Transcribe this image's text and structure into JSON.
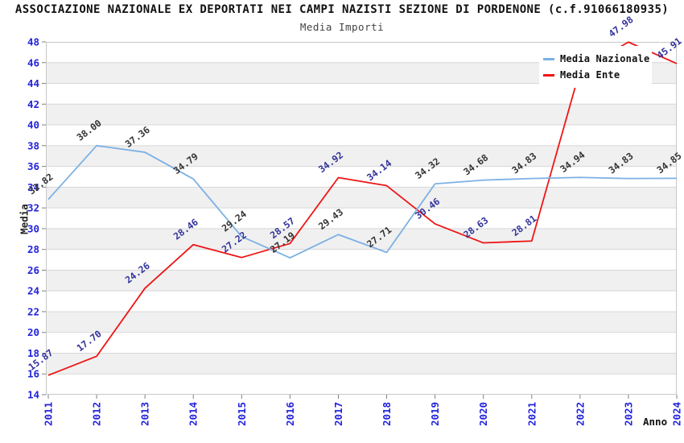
{
  "header": {
    "title": "ASSOCIAZIONE NAZIONALE EX DEPORTATI NEI CAMPI NAZISTI SEZIONE DI PORDENONE (c.f.91066180935)",
    "subtitle": "Media Importi"
  },
  "chart_data": {
    "type": "line",
    "title": "ASSOCIAZIONE NAZIONALE EX DEPORTATI NEI CAMPI NAZISTI SEZIONE DI PORDENONE (c.f.91066180935)",
    "subtitle": "Media Importi",
    "xlabel": "Anno",
    "ylabel": "Media",
    "x": [
      "2011",
      "2012",
      "2013",
      "2014",
      "2015",
      "2016",
      "2017",
      "2018",
      "2019",
      "2020",
      "2021",
      "2022",
      "2023",
      "2024"
    ],
    "ylim": [
      14,
      48
    ],
    "ytick_step": 2,
    "grid": "horizontal gridlines with alternating gray bands every 2 units",
    "legend_position": "top-right",
    "series": [
      {
        "name": "Media Nazionale",
        "color": "#7cb0e4",
        "label_color": "#333333",
        "values": [
          32.82,
          38.0,
          37.36,
          34.79,
          29.24,
          27.19,
          29.43,
          27.71,
          34.32,
          34.68,
          34.83,
          34.94,
          34.83,
          34.85
        ],
        "point_labels": [
          "32.82",
          "38.00",
          "37.36",
          "34.79",
          "29.24",
          "27.19",
          "29.43",
          "27.71",
          "34.32",
          "34.68",
          "34.83",
          "34.94",
          "34.83",
          "34.85"
        ]
      },
      {
        "name": "Media Ente",
        "color": "#ee1515",
        "label_color": "#32329b",
        "values": [
          15.87,
          17.7,
          24.26,
          28.46,
          27.22,
          28.57,
          34.92,
          34.14,
          30.46,
          28.63,
          28.81,
          45.3,
          47.98,
          45.91
        ],
        "point_labels": [
          "15.87",
          "17.70",
          "24.26",
          "28.46",
          "27.22",
          "28.57",
          "34.92",
          "34.14",
          "30.46",
          "28.63",
          "28.81",
          "",
          "47.98",
          "45.91"
        ]
      }
    ],
    "style": {
      "band_fill": "#f0f0f0",
      "grid_color": "#d7d7d7",
      "border_color": "#c8c8c8",
      "tick_color": "#808080",
      "tick_label_color": "#2222dd",
      "background": "#ffffff"
    }
  },
  "legend": {
    "items": [
      {
        "label": "Media Nazionale",
        "color": "#7cb0e4"
      },
      {
        "label": "Media Ente",
        "color": "#ee1515"
      }
    ]
  },
  "axes": {
    "y_title": "Media",
    "x_title": "Anno"
  }
}
